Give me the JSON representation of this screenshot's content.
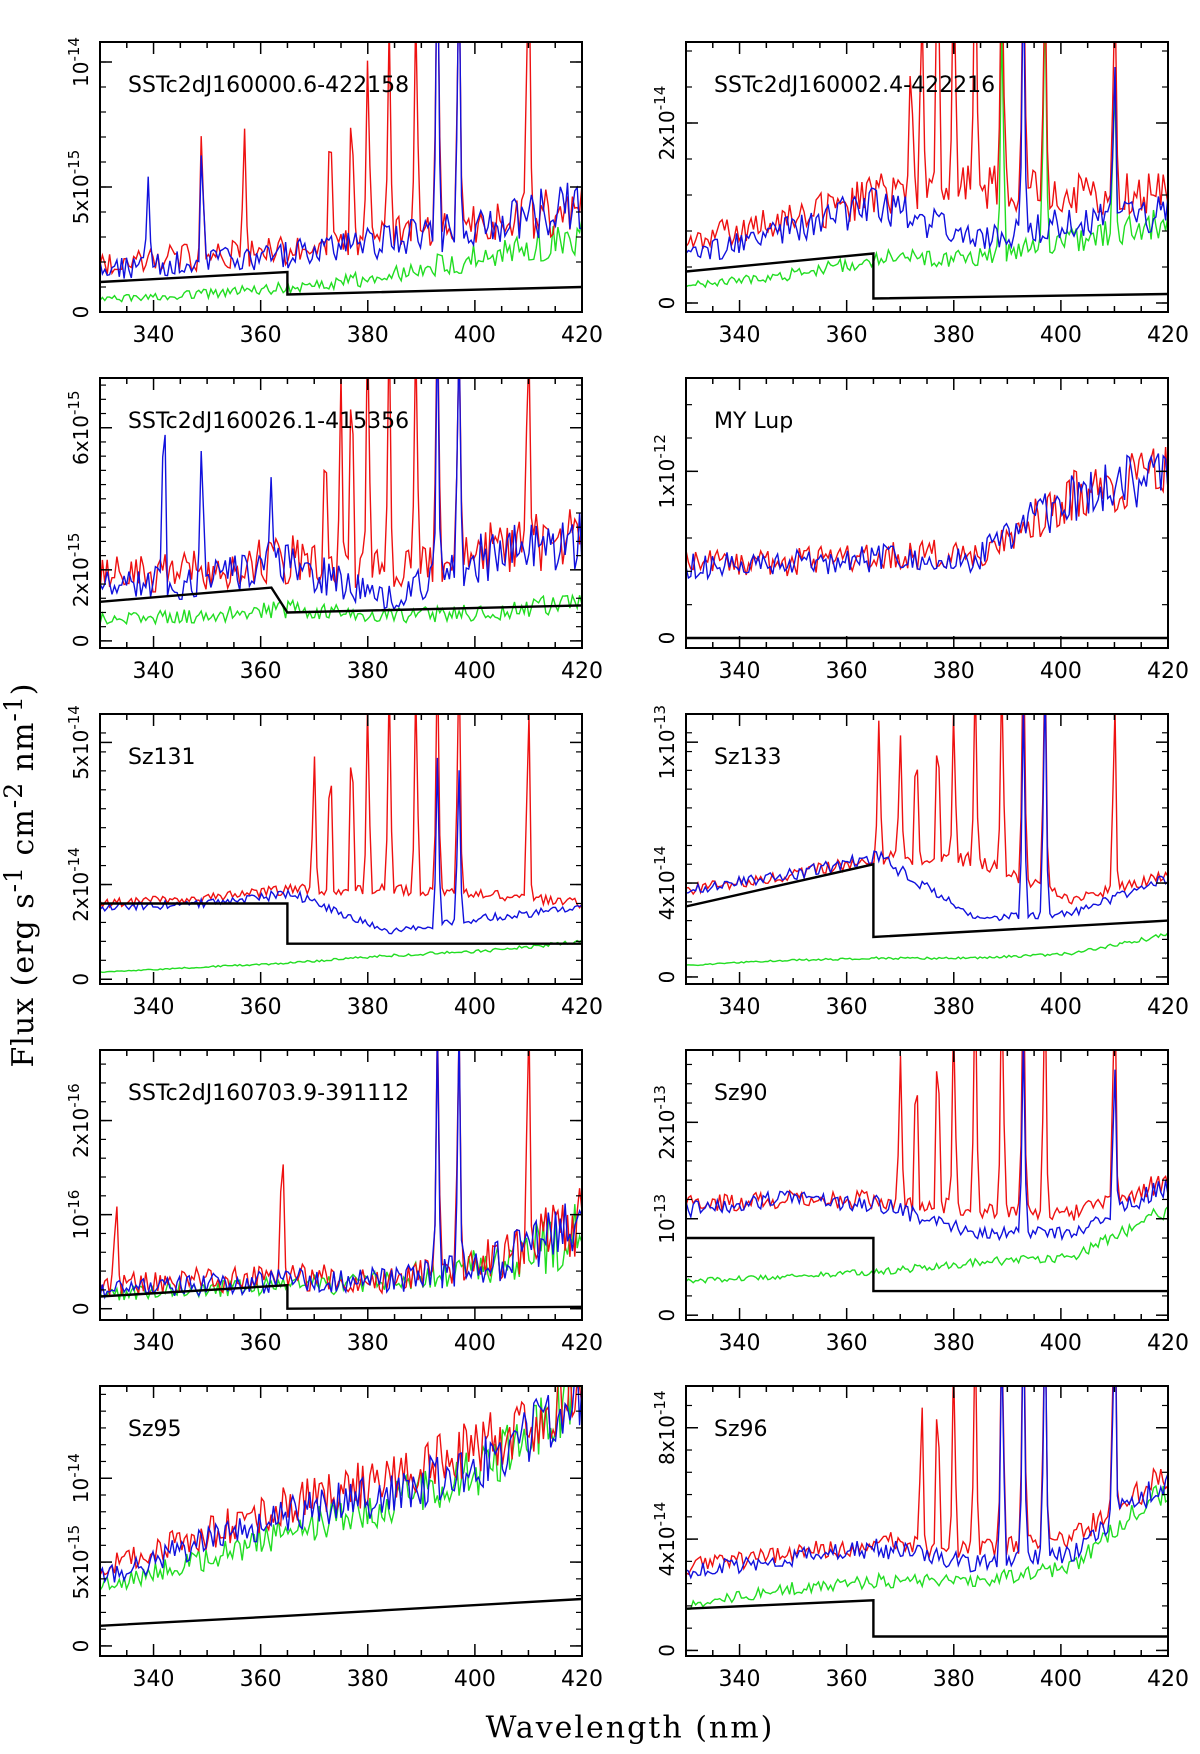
{
  "figure": {
    "xlabel": "Wavelength (nm)",
    "ylabel_text": "Flux (erg s",
    "ylabel_sup1": "-1",
    "ylabel_mid": " cm",
    "ylabel_sup2": "-2",
    "ylabel_mid2": " nm",
    "ylabel_sup3": "-1",
    "ylabel_end": ")"
  },
  "colors": {
    "red": "#ee1111",
    "blue": "#1111dd",
    "green": "#22dd22",
    "black": "#000000"
  },
  "chart_data": [
    {
      "type": "line",
      "title": "SSTc2dJ160000.6-422158",
      "xlim": [
        330,
        420
      ],
      "ylim": [
        -0.0,
        1.08e-14
      ],
      "yticks": [
        {
          "v": 0,
          "t": "0"
        },
        {
          "v": 5e-15,
          "t": "5x10-15"
        },
        {
          "v": 1e-14,
          "t": "10-14"
        }
      ],
      "xticks": [
        340,
        360,
        380,
        400,
        420
      ],
      "spec": {
        "r": [
          2e-15,
          2.2e-15,
          2.5e-15,
          3e-15,
          3.6e-15,
          4.2e-15
        ],
        "b": [
          1.7e-15,
          2e-15,
          2.3e-15,
          2.8e-15,
          3.5e-15,
          4.3e-15
        ],
        "g": [
          5e-16,
          7e-16,
          1e-15,
          1.4e-15,
          2.3e-15,
          3e-15
        ],
        "noise": 0.25,
        "model": [
          [
            330,
            1.2e-15
          ],
          [
            365,
            1.6e-15
          ],
          [
            365,
            7e-16
          ],
          [
            420,
            1e-15
          ]
        ],
        "lines_r": [
          [
            349,
            6e-15
          ],
          [
            357,
            5e-15
          ],
          [
            373,
            6e-15
          ],
          [
            377,
            7e-15
          ],
          [
            380,
            8e-15
          ],
          [
            384,
            8e-15
          ],
          [
            389,
            9e-15
          ],
          [
            393,
            1.2e-14
          ],
          [
            397,
            1.2e-14
          ],
          [
            410,
            1.2e-14
          ]
        ],
        "lines_b": [
          [
            339,
            4e-15
          ],
          [
            349,
            5e-15
          ],
          [
            393,
            1.2e-14
          ],
          [
            397,
            1.2e-14
          ]
        ],
        "lines_g": []
      }
    },
    {
      "type": "line",
      "title": "SSTc2dJ160002.4-422216",
      "xlim": [
        330,
        420
      ],
      "ylim": [
        -1e-15,
        2.9e-14
      ],
      "yticks": [
        {
          "v": 0,
          "t": "0"
        },
        {
          "v": 2e-14,
          "t": "2x10-14"
        }
      ],
      "xticks": [
        340,
        360,
        380,
        400,
        420
      ],
      "spec": {
        "r": [
          7e-15,
          9e-15,
          1.2e-14,
          1.3e-14,
          1.2e-14,
          1.2e-14
        ],
        "b": [
          5e-15,
          8e-15,
          1.1e-14,
          7e-15,
          9e-15,
          1e-14
        ],
        "g": [
          2e-15,
          3e-15,
          5e-15,
          5e-15,
          7e-15,
          9e-15
        ],
        "noise": 0.2,
        "model": [
          [
            330,
            3.5e-15
          ],
          [
            365,
            5.5e-15
          ],
          [
            365,
            5e-16
          ],
          [
            420,
            1e-15
          ]
        ],
        "lines_r": [
          [
            372,
            2e-14
          ],
          [
            374,
            2.4e-14
          ],
          [
            377,
            2.9e-14
          ],
          [
            380,
            2.9e-14
          ],
          [
            384,
            2.9e-14
          ],
          [
            389,
            2.9e-14
          ],
          [
            393,
            2.9e-14
          ],
          [
            397,
            2.9e-14
          ],
          [
            410,
            2.9e-14
          ]
        ],
        "lines_b": [
          [
            393,
            2.9e-14
          ],
          [
            410,
            2e-14
          ]
        ],
        "lines_g": [
          [
            389,
            2.9e-14
          ],
          [
            397,
            2.9e-14
          ],
          [
            410,
            2e-14
          ]
        ]
      }
    },
    {
      "type": "line",
      "title": "SSTc2dJ160026.1-415356",
      "xlim": [
        330,
        420
      ],
      "ylim": [
        -2e-16,
        7.4e-15
      ],
      "yticks": [
        {
          "v": 0,
          "t": "0"
        },
        {
          "v": 2e-15,
          "t": "2x10-15"
        },
        {
          "v": 6e-15,
          "t": "6x10-15"
        }
      ],
      "xticks": [
        340,
        360,
        380,
        400,
        420
      ],
      "spec": {
        "r": [
          1.8e-15,
          2e-15,
          2.3e-15,
          2e-15,
          2.6e-15,
          2.9e-15
        ],
        "b": [
          1.5e-15,
          1.7e-15,
          2.1e-15,
          1.2e-15,
          2.4e-15,
          2.8e-15
        ],
        "g": [
          6e-16,
          7e-16,
          9e-16,
          7e-16,
          8e-16,
          1.1e-15
        ],
        "noise": 0.3,
        "model": [
          [
            330,
            1.1e-15
          ],
          [
            362,
            1.5e-15
          ],
          [
            365,
            8e-16
          ],
          [
            420,
            1e-15
          ]
        ],
        "lines_r": [
          [
            372,
            4e-15
          ],
          [
            375,
            5e-15
          ],
          [
            377,
            6e-15
          ],
          [
            380,
            7e-15
          ],
          [
            384,
            7e-15
          ],
          [
            389,
            7e-15
          ],
          [
            393,
            7e-15
          ],
          [
            397,
            7e-15
          ],
          [
            410,
            7e-15
          ]
        ],
        "lines_b": [
          [
            342,
            6.2e-15
          ],
          [
            349,
            4.8e-15
          ],
          [
            362,
            3.2e-15
          ],
          [
            393,
            7e-15
          ],
          [
            397,
            7e-15
          ]
        ],
        "lines_g": []
      }
    },
    {
      "type": "line",
      "title": "MY Lup",
      "xlim": [
        330,
        420
      ],
      "ylim": [
        -6e-14,
        1.56e-12
      ],
      "yticks": [
        {
          "v": 0,
          "t": "0"
        },
        {
          "v": 1e-12,
          "t": "1x10-12"
        }
      ],
      "xticks": [
        340,
        360,
        380,
        400,
        420
      ],
      "spec": {
        "r": [
          4.5e-13,
          4.5e-13,
          5e-13,
          5e-13,
          8.5e-13,
          1e-12
        ],
        "b": [
          4.3e-13,
          4.5e-13,
          4.8e-13,
          4.8e-13,
          8.5e-13,
          1e-12
        ],
        "g": null,
        "noise": 0.18,
        "model": [
          [
            330,
            0.0
          ],
          [
            420,
            0.0
          ]
        ],
        "lines_r": [],
        "lines_b": [],
        "lines_g": []
      }
    },
    {
      "type": "line",
      "title": "Sz131",
      "xlim": [
        330,
        420
      ],
      "ylim": [
        -1e-15,
        5.6e-14
      ],
      "yticks": [
        {
          "v": 0,
          "t": "0"
        },
        {
          "v": 2e-14,
          "t": "2x10-14"
        },
        {
          "v": 5e-14,
          "t": "5x10-14"
        }
      ],
      "xticks": [
        340,
        360,
        380,
        400,
        420
      ],
      "spec": {
        "r": [
          1.6e-14,
          1.7e-14,
          1.9e-14,
          1.9e-14,
          1.8e-14,
          1.6e-14
        ],
        "b": [
          1.5e-14,
          1.6e-14,
          1.8e-14,
          1e-14,
          1.3e-14,
          1.5e-14
        ],
        "g": [
          1.5e-15,
          2.5e-15,
          3.5e-15,
          5e-15,
          6e-15,
          8e-15
        ],
        "noise": 0.06,
        "model": [
          [
            330,
            1.6e-14
          ],
          [
            365,
            1.6e-14
          ],
          [
            365,
            7.5e-15
          ],
          [
            420,
            7.5e-15
          ]
        ],
        "lines_r": [
          [
            370,
            3e-14
          ],
          [
            373,
            3.3e-14
          ],
          [
            377,
            3.8e-14
          ],
          [
            380,
            4.2e-14
          ],
          [
            384,
            4.5e-14
          ],
          [
            389,
            4.6e-14
          ],
          [
            393,
            5.1e-14
          ],
          [
            397,
            5.6e-14
          ],
          [
            410,
            4.6e-14
          ]
        ],
        "lines_b": [
          [
            393,
            3.5e-14
          ],
          [
            397,
            3.5e-14
          ]
        ],
        "lines_g": []
      }
    },
    {
      "type": "line",
      "title": "Sz133",
      "xlim": [
        330,
        420
      ],
      "ylim": [
        -3e-15,
        1.12e-13
      ],
      "yticks": [
        {
          "v": 0,
          "t": "0"
        },
        {
          "v": 4e-14,
          "t": "4x10-14"
        },
        {
          "v": 1e-13,
          "t": "1x10-13"
        }
      ],
      "xticks": [
        340,
        360,
        380,
        400,
        420
      ],
      "spec": {
        "r": [
          3.7e-14,
          4.3e-14,
          5.1e-14,
          5e-14,
          3.3e-14,
          4.3e-14
        ],
        "b": [
          3.7e-14,
          4.3e-14,
          5.1e-14,
          2.5e-14,
          2.7e-14,
          4.2e-14
        ],
        "g": [
          5e-15,
          7e-15,
          8e-15,
          8e-15,
          1e-14,
          1.8e-14
        ],
        "noise": 0.06,
        "model": [
          [
            330,
            3e-14
          ],
          [
            365,
            4.8e-14
          ],
          [
            365,
            1.7e-14
          ],
          [
            420,
            2.4e-14
          ]
        ],
        "lines_r": [
          [
            366,
            6e-14
          ],
          [
            370,
            5.5e-14
          ],
          [
            373,
            6e-14
          ],
          [
            377,
            6.6e-14
          ],
          [
            380,
            7e-14
          ],
          [
            384,
            8e-14
          ],
          [
            389,
            9e-14
          ],
          [
            393,
            1.1e-13
          ],
          [
            397,
            1.1e-13
          ],
          [
            410,
            9e-14
          ]
        ],
        "lines_b": [
          [
            393,
            9e-14
          ],
          [
            397,
            1.1e-13
          ]
        ],
        "lines_g": []
      }
    },
    {
      "type": "line",
      "title": "SSTc2dJ160703.9-391112",
      "xlim": [
        330,
        420
      ],
      "ylim": [
        -1.2e-17,
        2.75e-16
      ],
      "yticks": [
        {
          "v": 0,
          "t": "0"
        },
        {
          "v": 1e-16,
          "t": "10-16"
        },
        {
          "v": 2e-16,
          "t": "2x10-16"
        }
      ],
      "xticks": [
        340,
        360,
        380,
        400,
        420
      ],
      "spec": {
        "r": [
          2.5e-17,
          3e-17,
          3.5e-17,
          3e-17,
          5e-17,
          9e-17
        ],
        "b": [
          2e-17,
          2.5e-17,
          3e-17,
          3e-17,
          4.5e-17,
          8.5e-17
        ],
        "g": [
          1.5e-17,
          2e-17,
          2.5e-17,
          3e-17,
          4.5e-17,
          8e-17
        ],
        "noise": 0.45,
        "model": [
          [
            330,
            1.3e-17
          ],
          [
            365,
            2.5e-17
          ],
          [
            365,
            0.0
          ],
          [
            420,
            2e-18
          ]
        ],
        "lines_r": [
          [
            333,
            1.2e-16
          ],
          [
            364,
            1.6e-16
          ],
          [
            393,
            2.7e-16
          ],
          [
            397,
            2.7e-16
          ],
          [
            410,
            2.7e-16
          ]
        ],
        "lines_b": [
          [
            393,
            2.7e-16
          ],
          [
            397,
            2.7e-16
          ]
        ],
        "lines_g": []
      }
    },
    {
      "type": "line",
      "title": "Sz90",
      "xlim": [
        330,
        420
      ],
      "ylim": [
        -5e-15,
        2.75e-13
      ],
      "yticks": [
        {
          "v": 0,
          "t": "0"
        },
        {
          "v": 1e-13,
          "t": "10-13"
        },
        {
          "v": 2e-13,
          "t": "2x10-13"
        }
      ],
      "xticks": [
        340,
        360,
        380,
        400,
        420
      ],
      "spec": {
        "r": [
          1.15e-13,
          1.2e-13,
          1.2e-13,
          1.1e-13,
          1.05e-13,
          1.4e-13
        ],
        "b": [
          1.1e-13,
          1.2e-13,
          1.15e-13,
          8.5e-14,
          8.5e-14,
          1.35e-13
        ],
        "g": [
          3.5e-14,
          4e-14,
          4.5e-14,
          5.5e-14,
          6e-14,
          1.1e-13
        ],
        "noise": 0.08,
        "model": [
          [
            330,
            8e-14
          ],
          [
            365,
            8e-14
          ],
          [
            365,
            2.5e-14
          ],
          [
            420,
            2.5e-14
          ]
        ],
        "lines_r": [
          [
            370,
            1.6e-13
          ],
          [
            373,
            1.8e-13
          ],
          [
            377,
            2e-13
          ],
          [
            380,
            2.2e-13
          ],
          [
            384,
            2.5e-13
          ],
          [
            389,
            2.7e-13
          ],
          [
            393,
            2.7e-13
          ],
          [
            397,
            2.7e-13
          ],
          [
            410,
            2.7e-13
          ]
        ],
        "lines_b": [
          [
            393,
            2e-13
          ],
          [
            410,
            1.8e-13
          ]
        ],
        "lines_g": []
      }
    },
    {
      "type": "line",
      "title": "Sz95",
      "xlim": [
        330,
        420
      ],
      "ylim": [
        -6e-16,
        1.55e-14
      ],
      "yticks": [
        {
          "v": 0,
          "t": "0"
        },
        {
          "v": 5e-15,
          "t": "5x10-15"
        },
        {
          "v": 1e-14,
          "t": "10-14"
        }
      ],
      "xticks": [
        340,
        360,
        380,
        400,
        420
      ],
      "spec": {
        "r": [
          4.5e-15,
          6.5e-15,
          8.5e-15,
          1e-14,
          1.2e-14,
          1.5e-14
        ],
        "b": [
          4e-15,
          6e-15,
          8e-15,
          9e-15,
          1.1e-14,
          1.5e-14
        ],
        "g": [
          3.5e-15,
          5e-15,
          7e-15,
          8.5e-15,
          1.05e-14,
          1.5e-14
        ],
        "noise": 0.15,
        "model": [
          [
            330,
            1.2e-15
          ],
          [
            365,
            1.8e-15
          ],
          [
            365,
            1.8e-15
          ],
          [
            420,
            2.8e-15
          ]
        ],
        "lines_r": [],
        "lines_b": [],
        "lines_g": []
      }
    },
    {
      "type": "line",
      "title": "Sz96",
      "xlim": [
        330,
        420
      ],
      "ylim": [
        -2e-15,
        9.5e-14
      ],
      "yticks": [
        {
          "v": 0,
          "t": "0"
        },
        {
          "v": 4e-14,
          "t": "4x10-14"
        },
        {
          "v": 8e-14,
          "t": "8x10-14"
        }
      ],
      "xticks": [
        340,
        360,
        380,
        400,
        420
      ],
      "spec": {
        "r": [
          3e-14,
          3.4e-14,
          3.9e-14,
          3.6e-14,
          4e-14,
          6.5e-14
        ],
        "b": [
          2.8e-14,
          3.3e-14,
          3.7e-14,
          3.1e-14,
          3.5e-14,
          6.3e-14
        ],
        "g": [
          1.6e-14,
          2.2e-14,
          2.5e-14,
          2.5e-14,
          3e-14,
          5.8e-14
        ],
        "noise": 0.1,
        "model": [
          [
            330,
            1.5e-14
          ],
          [
            365,
            1.8e-14
          ],
          [
            365,
            5e-15
          ],
          [
            420,
            5e-15
          ]
        ],
        "lines_r": [
          [
            374,
            6e-14
          ],
          [
            377,
            6.5e-14
          ],
          [
            380,
            7e-14
          ],
          [
            384,
            8e-14
          ],
          [
            389,
            9e-14
          ],
          [
            393,
            9.5e-14
          ],
          [
            397,
            9.5e-14
          ],
          [
            410,
            9.5e-14
          ]
        ],
        "lines_b": [
          [
            389,
            9e-14
          ],
          [
            393,
            9.5e-14
          ],
          [
            397,
            9.5e-14
          ],
          [
            410,
            9e-14
          ]
        ],
        "lines_g": []
      }
    }
  ]
}
